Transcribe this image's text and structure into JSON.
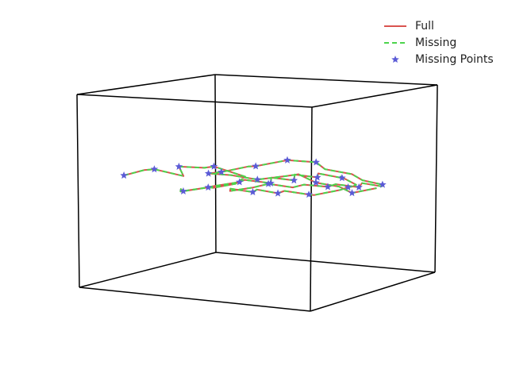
{
  "chart_data": {
    "type": "line3d",
    "title": "",
    "grid": false,
    "legend_position": "top-right",
    "colors": {
      "Full": "#d9534f",
      "Missing": "#4cd44c",
      "Missing Points": "#5b5bd6",
      "box": "#000000"
    },
    "series": [
      {
        "name": "Full",
        "style": "solid",
        "points": [
          [
            0.05,
            0.25,
            0.55
          ],
          [
            0.12,
            0.28,
            0.58
          ],
          [
            0.2,
            0.22,
            0.6
          ],
          [
            0.28,
            0.3,
            0.56
          ],
          [
            0.33,
            0.18,
            0.63
          ],
          [
            0.4,
            0.25,
            0.62
          ],
          [
            0.47,
            0.2,
            0.64
          ],
          [
            0.52,
            0.35,
            0.57
          ],
          [
            0.45,
            0.4,
            0.52
          ],
          [
            0.38,
            0.35,
            0.5
          ],
          [
            0.3,
            0.45,
            0.48
          ],
          [
            0.22,
            0.4,
            0.46
          ],
          [
            0.15,
            0.5,
            0.45
          ],
          [
            0.1,
            0.58,
            0.42
          ],
          [
            0.18,
            0.62,
            0.44
          ],
          [
            0.27,
            0.55,
            0.47
          ],
          [
            0.35,
            0.6,
            0.49
          ],
          [
            0.42,
            0.52,
            0.52
          ],
          [
            0.5,
            0.58,
            0.5
          ],
          [
            0.56,
            0.48,
            0.55
          ],
          [
            0.62,
            0.55,
            0.53
          ],
          [
            0.68,
            0.45,
            0.58
          ],
          [
            0.74,
            0.52,
            0.56
          ],
          [
            0.8,
            0.42,
            0.6
          ],
          [
            0.86,
            0.5,
            0.57
          ],
          [
            0.92,
            0.38,
            0.6
          ],
          [
            0.95,
            0.45,
            0.55
          ],
          [
            0.88,
            0.55,
            0.52
          ],
          [
            0.82,
            0.62,
            0.5
          ],
          [
            0.75,
            0.68,
            0.47
          ],
          [
            0.68,
            0.6,
            0.45
          ],
          [
            0.6,
            0.7,
            0.43
          ],
          [
            0.52,
            0.65,
            0.45
          ],
          [
            0.45,
            0.72,
            0.42
          ],
          [
            0.38,
            0.68,
            0.44
          ],
          [
            0.32,
            0.75,
            0.41
          ],
          [
            0.25,
            0.7,
            0.43
          ],
          [
            0.2,
            0.78,
            0.4
          ],
          [
            0.28,
            0.82,
            0.42
          ],
          [
            0.36,
            0.8,
            0.45
          ],
          [
            0.44,
            0.85,
            0.43
          ],
          [
            0.52,
            0.8,
            0.46
          ],
          [
            0.58,
            0.88,
            0.44
          ],
          [
            0.65,
            0.82,
            0.47
          ],
          [
            0.72,
            0.88,
            0.45
          ],
          [
            0.78,
            0.8,
            0.49
          ],
          [
            0.84,
            0.85,
            0.47
          ],
          [
            0.9,
            0.75,
            0.5
          ],
          [
            0.85,
            0.68,
            0.53
          ],
          [
            0.78,
            0.72,
            0.55
          ],
          [
            0.7,
            0.65,
            0.58
          ],
          [
            0.62,
            0.72,
            0.6
          ],
          [
            0.55,
            0.62,
            0.62
          ],
          [
            0.48,
            0.5,
            0.6
          ],
          [
            0.4,
            0.58,
            0.58
          ],
          [
            0.34,
            0.48,
            0.56
          ],
          [
            0.26,
            0.52,
            0.54
          ],
          [
            0.3,
            0.62,
            0.52
          ],
          [
            0.4,
            0.65,
            0.5
          ],
          [
            0.5,
            0.7,
            0.52
          ],
          [
            0.6,
            0.62,
            0.55
          ],
          [
            0.7,
            0.58,
            0.52
          ],
          [
            0.78,
            0.62,
            0.5
          ],
          [
            0.86,
            0.58,
            0.48
          ],
          [
            0.93,
            0.65,
            0.5
          ]
        ]
      },
      {
        "name": "Missing",
        "style": "dashed",
        "points": [
          [
            0.05,
            0.25,
            0.55
          ],
          [
            0.12,
            0.28,
            0.58
          ],
          [
            0.2,
            0.22,
            0.6
          ],
          [
            0.28,
            0.3,
            0.56
          ],
          [
            0.33,
            0.18,
            0.63
          ],
          [
            0.4,
            0.25,
            0.62
          ],
          [
            0.47,
            0.2,
            0.64
          ],
          [
            0.52,
            0.35,
            0.57
          ],
          [
            0.45,
            0.4,
            0.52
          ],
          [
            0.38,
            0.35,
            0.5
          ],
          [
            0.3,
            0.45,
            0.48
          ],
          [
            0.22,
            0.4,
            0.46
          ],
          [
            0.15,
            0.5,
            0.45
          ],
          [
            0.1,
            0.58,
            0.42
          ],
          [
            0.18,
            0.62,
            0.44
          ],
          [
            0.27,
            0.55,
            0.47
          ],
          [
            0.35,
            0.6,
            0.49
          ],
          [
            0.42,
            0.52,
            0.52
          ],
          [
            0.5,
            0.58,
            0.5
          ],
          [
            0.56,
            0.48,
            0.55
          ],
          [
            0.62,
            0.55,
            0.53
          ],
          [
            0.68,
            0.45,
            0.58
          ],
          [
            0.74,
            0.52,
            0.56
          ],
          [
            0.8,
            0.42,
            0.6
          ],
          [
            0.86,
            0.5,
            0.57
          ],
          [
            0.92,
            0.38,
            0.6
          ],
          [
            0.95,
            0.45,
            0.55
          ],
          [
            0.88,
            0.55,
            0.52
          ],
          [
            0.82,
            0.62,
            0.5
          ],
          [
            0.75,
            0.68,
            0.47
          ],
          [
            0.68,
            0.6,
            0.45
          ],
          [
            0.6,
            0.7,
            0.43
          ],
          [
            0.52,
            0.65,
            0.45
          ],
          [
            0.45,
            0.72,
            0.42
          ],
          [
            0.38,
            0.68,
            0.44
          ],
          [
            0.32,
            0.75,
            0.41
          ],
          [
            0.25,
            0.7,
            0.43
          ],
          [
            0.2,
            0.78,
            0.4
          ],
          [
            0.28,
            0.82,
            0.42
          ],
          [
            0.36,
            0.8,
            0.45
          ],
          [
            0.44,
            0.85,
            0.43
          ],
          [
            0.52,
            0.8,
            0.46
          ],
          [
            0.58,
            0.88,
            0.44
          ],
          [
            0.65,
            0.82,
            0.47
          ],
          [
            0.72,
            0.88,
            0.45
          ],
          [
            0.78,
            0.8,
            0.49
          ],
          [
            0.84,
            0.85,
            0.47
          ],
          [
            0.9,
            0.75,
            0.5
          ],
          [
            0.85,
            0.68,
            0.53
          ],
          [
            0.78,
            0.72,
            0.55
          ],
          [
            0.7,
            0.65,
            0.58
          ],
          [
            0.62,
            0.72,
            0.6
          ],
          [
            0.55,
            0.62,
            0.62
          ],
          [
            0.48,
            0.5,
            0.6
          ],
          [
            0.4,
            0.58,
            0.58
          ],
          [
            0.34,
            0.48,
            0.56
          ],
          [
            0.26,
            0.52,
            0.54
          ],
          [
            0.3,
            0.62,
            0.52
          ],
          [
            0.4,
            0.65,
            0.5
          ],
          [
            0.5,
            0.7,
            0.52
          ],
          [
            0.6,
            0.62,
            0.55
          ],
          [
            0.7,
            0.58,
            0.52
          ],
          [
            0.78,
            0.62,
            0.5
          ],
          [
            0.86,
            0.58,
            0.48
          ],
          [
            0.93,
            0.65,
            0.5
          ]
        ]
      },
      {
        "name": "Missing Points",
        "style": "markers",
        "points": [
          [
            0.05,
            0.25,
            0.55
          ],
          [
            0.2,
            0.22,
            0.6
          ],
          [
            0.33,
            0.18,
            0.63
          ],
          [
            0.47,
            0.2,
            0.64
          ],
          [
            0.3,
            0.45,
            0.48
          ],
          [
            0.22,
            0.4,
            0.46
          ],
          [
            0.35,
            0.6,
            0.49
          ],
          [
            0.5,
            0.58,
            0.5
          ],
          [
            0.62,
            0.55,
            0.53
          ],
          [
            0.74,
            0.52,
            0.56
          ],
          [
            0.86,
            0.5,
            0.57
          ],
          [
            0.82,
            0.62,
            0.5
          ],
          [
            0.6,
            0.7,
            0.43
          ],
          [
            0.45,
            0.72,
            0.42
          ],
          [
            0.32,
            0.75,
            0.41
          ],
          [
            0.36,
            0.8,
            0.45
          ],
          [
            0.58,
            0.88,
            0.44
          ],
          [
            0.72,
            0.88,
            0.45
          ],
          [
            0.9,
            0.75,
            0.5
          ],
          [
            0.62,
            0.72,
            0.6
          ],
          [
            0.48,
            0.5,
            0.6
          ],
          [
            0.34,
            0.48,
            0.56
          ],
          [
            0.26,
            0.52,
            0.54
          ],
          [
            0.4,
            0.65,
            0.5
          ],
          [
            0.7,
            0.58,
            0.52
          ],
          [
            0.86,
            0.58,
            0.48
          ],
          [
            0.55,
            0.62,
            0.62
          ]
        ]
      }
    ],
    "legend": [
      {
        "label": "Full",
        "style": "solid",
        "color": "#d9534f"
      },
      {
        "label": "Missing",
        "style": "dashed",
        "color": "#4cd44c"
      },
      {
        "label": "Missing Points",
        "style": "star",
        "color": "#5b5bd6"
      }
    ]
  }
}
